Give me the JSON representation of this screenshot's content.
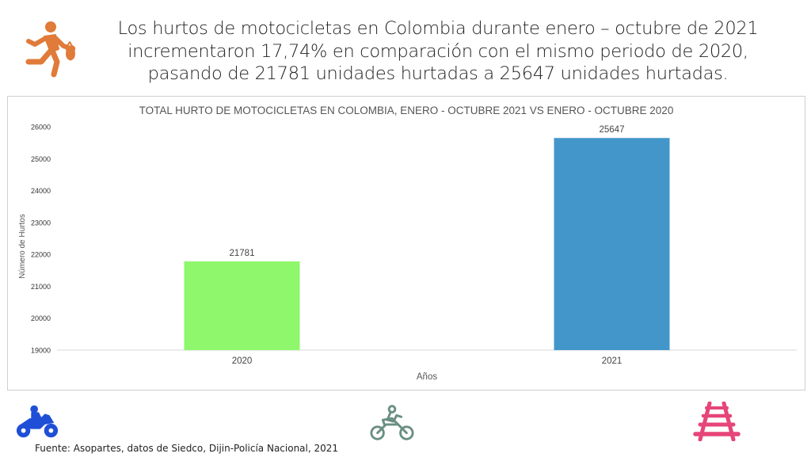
{
  "headline": "Los hurtos de motocicletas en Colombia durante enero – octubre de 2021 incrementaron 17,74% en comparación con el mismo periodo de 2020, pasando de 21781 unidades hurtadas a 25647 unidades hurtadas.",
  "icons": {
    "header": "thief-running-icon",
    "footer_left": "motorcycle-rider-icon",
    "footer_center": "motorcycle-outline-icon",
    "footer_right": "railway-track-icon"
  },
  "colors": {
    "thief_icon": "#e07b39",
    "bar_2020": "#8ef76b",
    "bar_2021": "#4396c9",
    "moto_blue": "#1f4fd6",
    "moto_outline": "#6b8f82",
    "rail_pink": "#e64579"
  },
  "chart_data": {
    "type": "bar",
    "title": "TOTAL HURTO DE MOTOCICLETAS EN COLOMBIA, ENERO - OCTUBRE 2021 VS ENERO - OCTUBRE 2020",
    "xlabel": "Años",
    "ylabel": "Número de Hurtos",
    "categories": [
      "2020",
      "2021"
    ],
    "values": [
      21781,
      25647
    ],
    "data_labels": [
      "21781",
      "25647"
    ],
    "bar_colors": [
      "#8ef76b",
      "#4396c9"
    ],
    "ylim": [
      19000,
      26000
    ],
    "yticks": [
      19000,
      20000,
      21000,
      22000,
      23000,
      24000,
      25000,
      26000
    ],
    "grid": false,
    "legend": "none"
  },
  "footer": {
    "source": "Fuente: Asopartes, datos de Siedco, Dijin-Policía Nacional, 2021"
  }
}
